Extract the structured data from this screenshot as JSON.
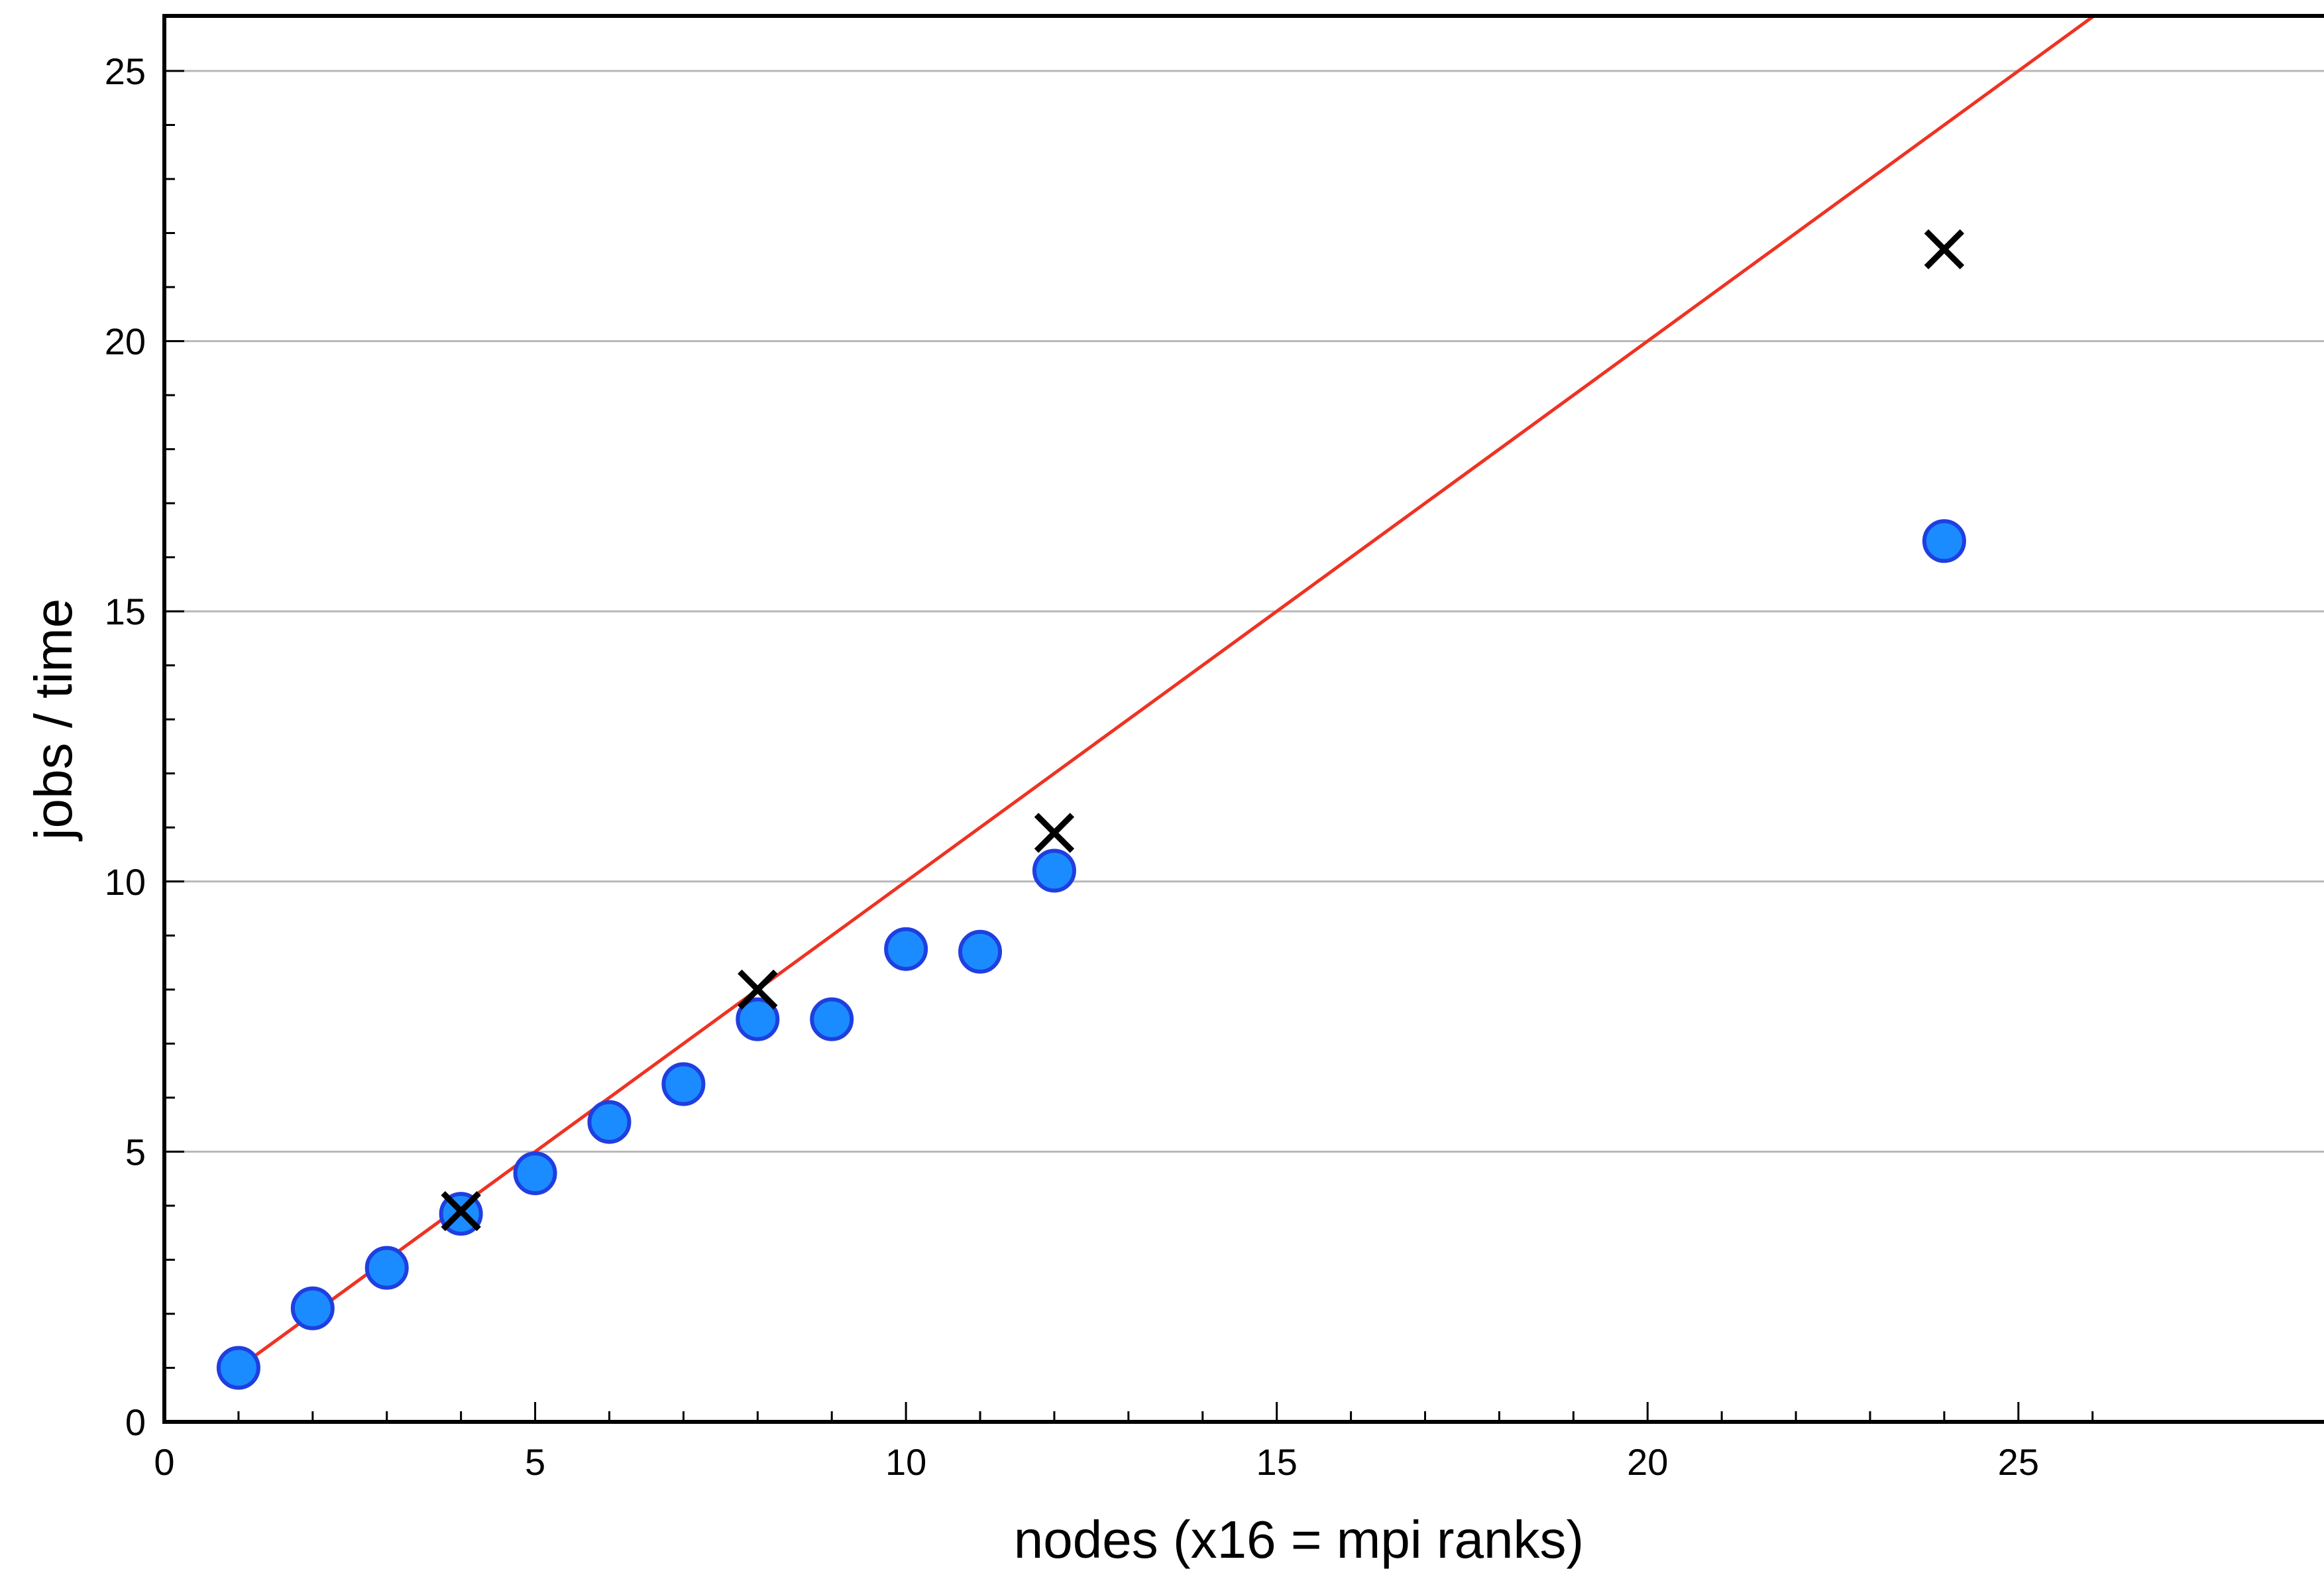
{
  "chart_data": {
    "type": "scatter",
    "xlabel": "nodes (x16 = mpi ranks)",
    "ylabel": "jobs / time",
    "xlim": [
      0,
      26
    ],
    "ylim": [
      0,
      26
    ],
    "xticks": [
      0,
      5,
      10,
      15,
      20,
      25
    ],
    "yticks": [
      0,
      5,
      10,
      15,
      20,
      25
    ],
    "grid": "horizontal",
    "series": [
      {
        "marker": "circle",
        "color": "#1a8cff",
        "edge_color": "#1f3fe0",
        "points": [
          {
            "x": 1,
            "y": 1.0
          },
          {
            "x": 2,
            "y": 2.1
          },
          {
            "x": 3,
            "y": 2.85
          },
          {
            "x": 4,
            "y": 3.85
          },
          {
            "x": 5,
            "y": 4.6
          },
          {
            "x": 6,
            "y": 5.55
          },
          {
            "x": 7,
            "y": 6.25
          },
          {
            "x": 8,
            "y": 7.45
          },
          {
            "x": 9,
            "y": 7.45
          },
          {
            "x": 10,
            "y": 8.75
          },
          {
            "x": 11,
            "y": 8.7
          },
          {
            "x": 12,
            "y": 10.2
          },
          {
            "x": 24,
            "y": 16.3
          }
        ]
      },
      {
        "marker": "x",
        "color": "#000000",
        "points": [
          {
            "x": 4,
            "y": 3.9
          },
          {
            "x": 8,
            "y": 8.0
          },
          {
            "x": 12,
            "y": 10.9
          },
          {
            "x": 24,
            "y": 21.7
          }
        ]
      },
      {
        "marker": "line",
        "color": "#ee3322",
        "points": [
          {
            "x": 1,
            "y": 1
          },
          {
            "x": 26,
            "y": 26
          }
        ]
      }
    ]
  }
}
